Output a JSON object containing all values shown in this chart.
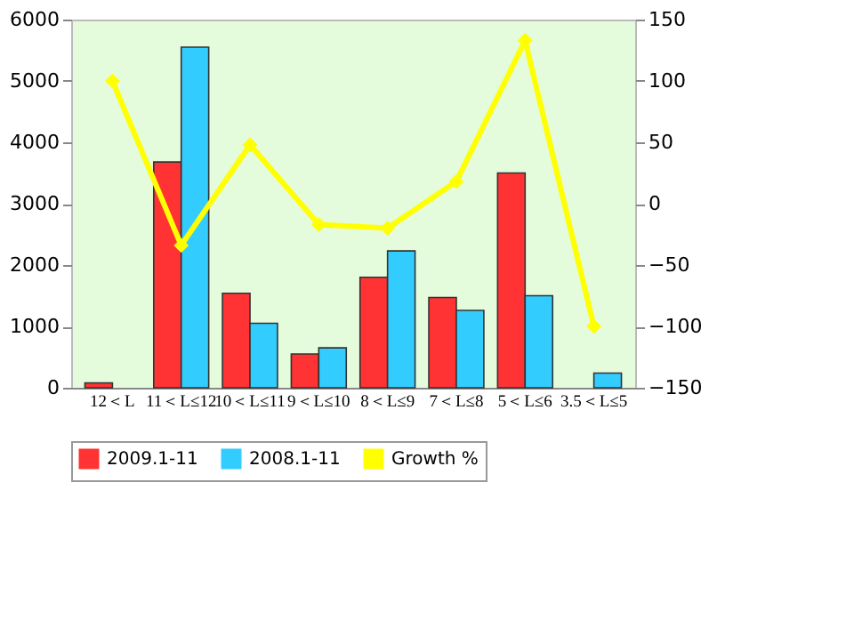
{
  "chart_data": {
    "type": "bar",
    "categories": [
      "12＜L",
      "11＜L≤12",
      "10＜L≤11",
      "9＜L≤10",
      "8＜L≤9",
      "7＜L≤8",
      "5＜L≤6",
      "3.5＜L≤5"
    ],
    "series": [
      {
        "name": "2009.1-11",
        "color": "#ff3333",
        "values": [
          80,
          3680,
          1540,
          550,
          1800,
          1470,
          3500,
          null
        ]
      },
      {
        "name": "2008.1-11",
        "color": "#33ccff",
        "values": [
          null,
          5550,
          1050,
          650,
          2230,
          1260,
          1500,
          240
        ]
      },
      {
        "name": "Growth %",
        "type": "line",
        "axis": "y2",
        "color": "#ffff00",
        "marker": "diamond",
        "values": [
          100,
          -34,
          48,
          -17,
          -20,
          18,
          133,
          -100
        ]
      }
    ],
    "ylim": [
      0,
      6000
    ],
    "yticks": [
      0,
      1000,
      2000,
      3000,
      4000,
      5000,
      6000
    ],
    "y2lim": [
      -150,
      150
    ],
    "y2ticks": [
      -150,
      -100,
      -50,
      0,
      50,
      100,
      150
    ],
    "grid": false,
    "legend": "bottom"
  }
}
